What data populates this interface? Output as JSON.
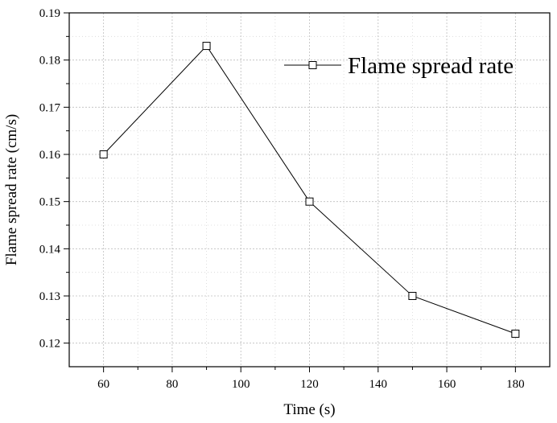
{
  "chart_data": {
    "type": "line",
    "xlabel": "Time (s)",
    "ylabel": "Flame spread rate (cm/s)",
    "xlim": [
      50,
      190
    ],
    "ylim": [
      0.115,
      0.19
    ],
    "x_ticks": [
      60,
      80,
      100,
      120,
      140,
      160,
      180
    ],
    "y_ticks": [
      0.12,
      0.13,
      0.14,
      0.15,
      0.16,
      0.17,
      0.18,
      0.19
    ],
    "grid": true,
    "legend_position": "top-right",
    "series": [
      {
        "name": "Flame spread rate",
        "marker": "open-square",
        "color": "#000000",
        "x": [
          60,
          90,
          120,
          150,
          180
        ],
        "y": [
          0.16,
          0.183,
          0.15,
          0.13,
          0.122
        ]
      }
    ]
  }
}
